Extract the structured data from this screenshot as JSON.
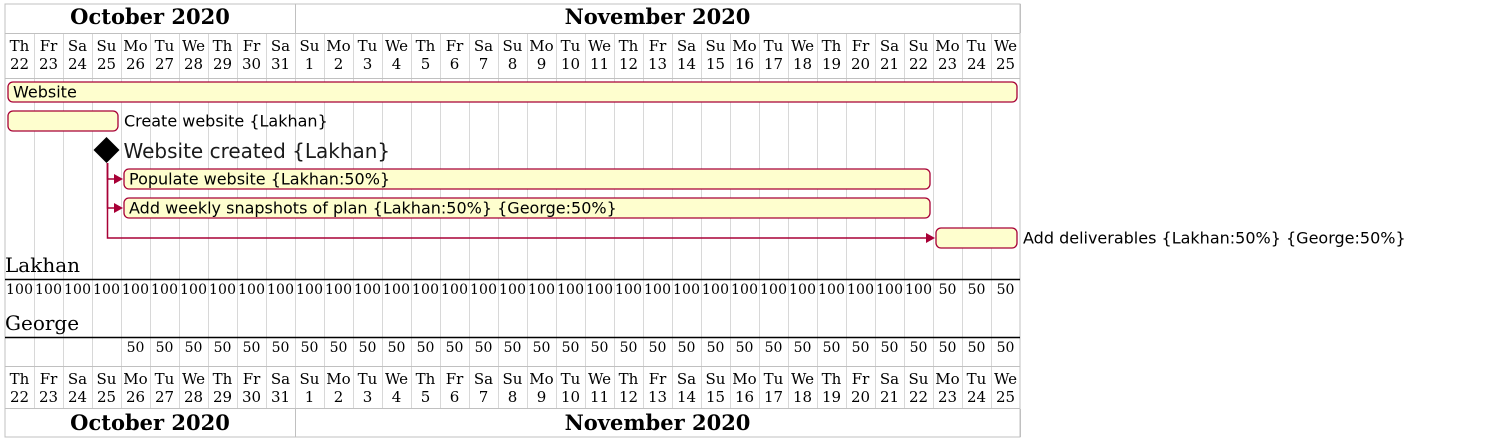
{
  "chart_data": {
    "type": "gantt",
    "header_months": [
      {
        "label": "October 2020",
        "start_day": 0,
        "days": 10
      },
      {
        "label": "November 2020",
        "start_day": 10,
        "days": 25
      }
    ],
    "weekdays": [
      "Th",
      "Fr",
      "Sa",
      "Su",
      "Mo",
      "Tu",
      "We",
      "Th",
      "Fr",
      "Sa",
      "Su",
      "Mo",
      "Tu",
      "We",
      "Th",
      "Fr",
      "Sa",
      "Su",
      "Mo",
      "Tu",
      "We",
      "Th",
      "Fr",
      "Sa",
      "Su",
      "Mo",
      "Tu",
      "We",
      "Th",
      "Fr",
      "Sa",
      "Su",
      "Mo",
      "Tu",
      "We"
    ],
    "day_numbers": [
      "22",
      "23",
      "24",
      "25",
      "26",
      "27",
      "28",
      "29",
      "30",
      "31",
      "1",
      "2",
      "3",
      "4",
      "5",
      "6",
      "7",
      "8",
      "9",
      "10",
      "11",
      "12",
      "13",
      "14",
      "15",
      "16",
      "17",
      "18",
      "19",
      "20",
      "21",
      "22",
      "23",
      "24",
      "25"
    ],
    "tasks": [
      {
        "name": "Website",
        "start_day": 0,
        "end_day": 35,
        "label_inside": true
      },
      {
        "name": "Create website {Lakhan}",
        "start_day": 0,
        "end_day": 4,
        "label_inside": false
      },
      {
        "name": "Website created {Lakhan}",
        "milestone_day": 3.5,
        "milestone": true
      },
      {
        "name": "Populate website {Lakhan:50%}",
        "start_day": 4,
        "end_day": 32,
        "label_inside": true
      },
      {
        "name": "Add weekly snapshots of plan {Lakhan:50%} {George:50%}",
        "start_day": 4,
        "end_day": 32,
        "label_inside": true
      },
      {
        "name": "Add deliverables {Lakhan:50%} {George:50%}",
        "start_day": 32,
        "end_day": 35,
        "label_inside": false
      }
    ],
    "dependencies": [
      {
        "from": "Website created {Lakhan}",
        "to": "Populate website {Lakhan:50%}"
      },
      {
        "from": "Website created {Lakhan}",
        "to": "Add weekly snapshots of plan {Lakhan:50%} {George:50%}"
      },
      {
        "from": "Website created {Lakhan}",
        "to": "Add deliverables {Lakhan:50%} {George:50%}"
      }
    ],
    "resources": [
      {
        "name": "Lakhan",
        "values": [
          "100",
          "100",
          "100",
          "100",
          "100",
          "100",
          "100",
          "100",
          "100",
          "100",
          "100",
          "100",
          "100",
          "100",
          "100",
          "100",
          "100",
          "100",
          "100",
          "100",
          "100",
          "100",
          "100",
          "100",
          "100",
          "100",
          "100",
          "100",
          "100",
          "100",
          "100",
          "100",
          "50",
          "50",
          "50"
        ]
      },
      {
        "name": "George",
        "values": [
          "",
          "",
          "",
          "",
          "50",
          "50",
          "50",
          "50",
          "50",
          "50",
          "50",
          "50",
          "50",
          "50",
          "50",
          "50",
          "50",
          "50",
          "50",
          "50",
          "50",
          "50",
          "50",
          "50",
          "50",
          "50",
          "50",
          "50",
          "50",
          "50",
          "50",
          "50",
          "50",
          "50",
          "50"
        ]
      }
    ],
    "colors": {
      "task_fill": "#FEFECE",
      "task_border": "#A80036",
      "arrow": "#A80036",
      "milestone": "#000000",
      "grid": "#C0C0C0"
    }
  }
}
